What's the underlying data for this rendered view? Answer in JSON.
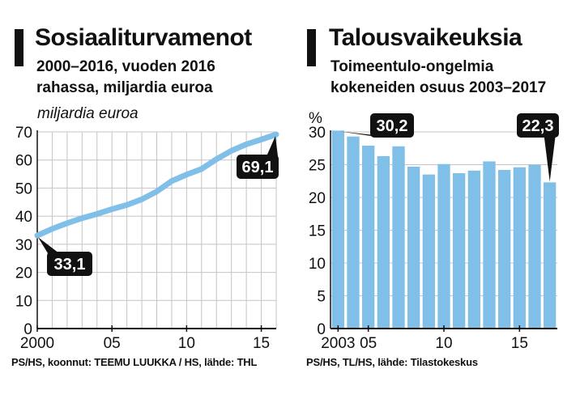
{
  "charts": [
    {
      "title": "Sosiaaliturvamenot",
      "subtitle": "2000–2016, vuoden 2016\nrahassa, miljardia euroa",
      "unit_label": "miljardia euroa",
      "source": "PS/HS, koonnut: TEEMU LUUKKA / HS, lähde: THL",
      "callouts": [
        "33,1",
        "69,1"
      ]
    },
    {
      "title": "Talousvaikeuksia",
      "subtitle": "Toimeentulo-ongelmia\nkokeneiden osuus 2003–2017",
      "unit_label": "%",
      "source": "PS/HS, TL/HS,  lähde: Tilastokeskus",
      "callouts": [
        "30,2",
        "22,3"
      ]
    }
  ],
  "colors": {
    "series": "#7fbfe8",
    "grid": "#c4c4c4",
    "axis": "#111111",
    "callout_bg": "#111111",
    "callout_text": "#ffffff"
  },
  "chart_data": [
    {
      "type": "line",
      "title": "Sosiaaliturvamenot",
      "subtitle": "2000–2016, vuoden 2016 rahassa, miljardia euroa",
      "ylabel": "miljardia euroa",
      "x": [
        2000,
        2001,
        2002,
        2003,
        2004,
        2005,
        2006,
        2007,
        2008,
        2009,
        2010,
        2011,
        2012,
        2013,
        2014,
        2015,
        2016
      ],
      "series": [
        {
          "values": [
            33.1,
            35.5,
            37.5,
            39.3,
            40.8,
            42.5,
            44.0,
            46.0,
            48.8,
            52.5,
            54.8,
            56.8,
            60.3,
            63.3,
            65.6,
            67.3,
            69.1
          ]
        }
      ],
      "xlim": [
        2000,
        2016
      ],
      "ylim": [
        0,
        70
      ],
      "yticks": [
        0,
        10,
        20,
        30,
        40,
        50,
        60,
        70
      ],
      "xticks": [
        {
          "value": 2000,
          "label": "2000"
        },
        {
          "value": 2005,
          "label": "05"
        },
        {
          "value": 2010,
          "label": "10"
        },
        {
          "value": 2015,
          "label": "15"
        }
      ],
      "annotations": [
        {
          "x": 2000,
          "y": 33.1,
          "text": "33,1"
        },
        {
          "x": 2016,
          "y": 69.1,
          "text": "69,1"
        }
      ],
      "grid": true
    },
    {
      "type": "bar",
      "title": "Talousvaikeuksia",
      "subtitle": "Toimeentulo-ongelmia kokeneiden osuus 2003–2017",
      "ylabel": "%",
      "categories": [
        2003,
        2004,
        2005,
        2006,
        2007,
        2008,
        2009,
        2010,
        2011,
        2012,
        2013,
        2014,
        2015,
        2016,
        2017
      ],
      "values": [
        30.2,
        29.3,
        27.9,
        26.3,
        27.8,
        24.7,
        23.5,
        25.1,
        23.7,
        24.1,
        25.5,
        24.2,
        24.6,
        25.0,
        22.3
      ],
      "ylim": [
        0,
        30
      ],
      "yticks": [
        0,
        5,
        10,
        15,
        20,
        25,
        30
      ],
      "xticks": [
        {
          "value": 2003,
          "label": "2003"
        },
        {
          "value": 2005,
          "label": "05"
        },
        {
          "value": 2010,
          "label": "10"
        },
        {
          "value": 2015,
          "label": "15"
        }
      ],
      "annotations": [
        {
          "x": 2003,
          "y": 30.2,
          "text": "30,2"
        },
        {
          "x": 2017,
          "y": 22.3,
          "text": "22,3"
        }
      ],
      "grid": true
    }
  ]
}
